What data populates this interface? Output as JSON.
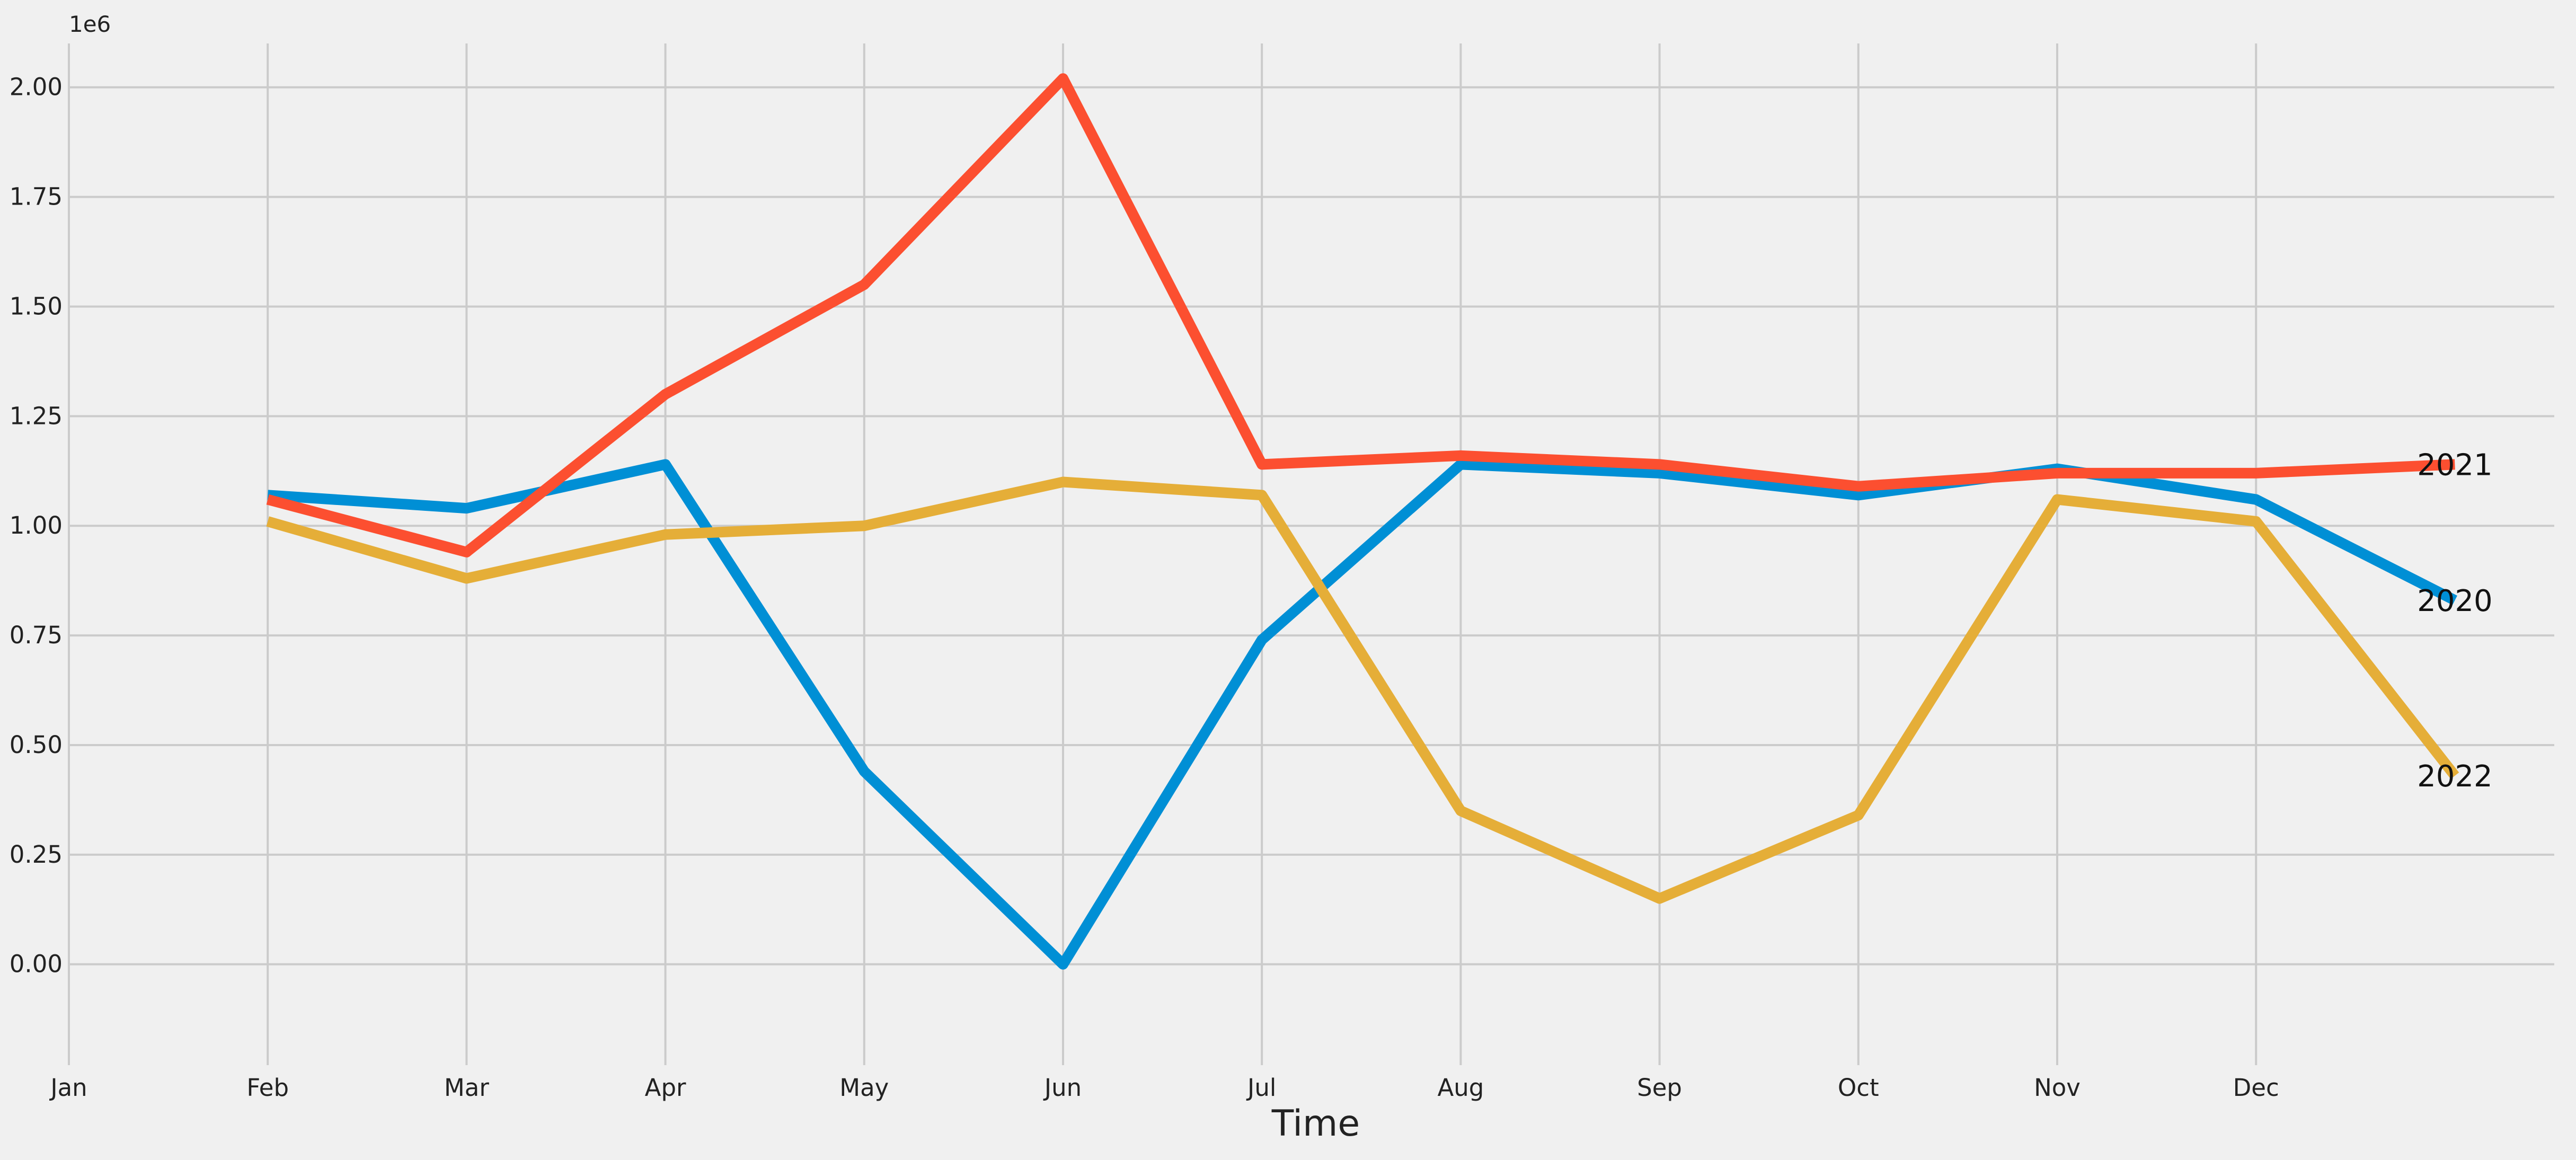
{
  "chart_data": {
    "type": "line",
    "title": "",
    "xlabel": "Time",
    "ylabel": "",
    "y_offset_label": "1e6",
    "grid": true,
    "categories": [
      "Jan",
      "Feb",
      "Mar",
      "Apr",
      "May",
      "Jun",
      "Jul",
      "Aug",
      "Sep",
      "Oct",
      "Nov",
      "Dec"
    ],
    "x_tick_labels": [
      "Jan",
      "Feb",
      "Mar",
      "Apr",
      "May",
      "Jun",
      "Jul",
      "Aug",
      "Sep",
      "Oct",
      "Nov",
      "Dec"
    ],
    "x_range": [
      0,
      12.5
    ],
    "ylim": [
      -0.23,
      2.1
    ],
    "y_ticks": [
      0.0,
      0.25,
      0.5,
      0.75,
      1.0,
      1.25,
      1.5,
      1.75,
      2.0
    ],
    "y_tick_labels": [
      "0.00",
      "0.25",
      "0.50",
      "0.75",
      "1.00",
      "1.25",
      "1.50",
      "1.75",
      "2.00"
    ],
    "series": [
      {
        "name": "2020",
        "color": "#008fd5",
        "x": [
          1,
          2,
          3,
          4,
          5,
          6,
          7,
          8,
          9,
          10,
          11,
          12
        ],
        "values": [
          1.07,
          1.04,
          1.14,
          0.44,
          0.0,
          0.74,
          1.14,
          1.12,
          1.07,
          1.13,
          1.06,
          0.83
        ]
      },
      {
        "name": "2021",
        "color": "#fc4f30",
        "x": [
          1,
          2,
          3,
          4,
          5,
          6,
          7,
          8,
          9,
          10,
          11,
          12
        ],
        "values": [
          1.06,
          0.94,
          1.3,
          1.55,
          2.02,
          1.14,
          1.16,
          1.14,
          1.09,
          1.12,
          1.12,
          1.14
        ]
      },
      {
        "name": "2022",
        "color": "#e5ae38",
        "x": [
          1,
          2,
          3,
          4,
          5,
          6,
          7,
          8,
          9,
          10,
          11,
          12
        ],
        "values": [
          1.01,
          0.88,
          0.98,
          1.0,
          1.1,
          1.07,
          0.35,
          0.15,
          0.34,
          1.06,
          1.01,
          0.43
        ]
      }
    ]
  }
}
